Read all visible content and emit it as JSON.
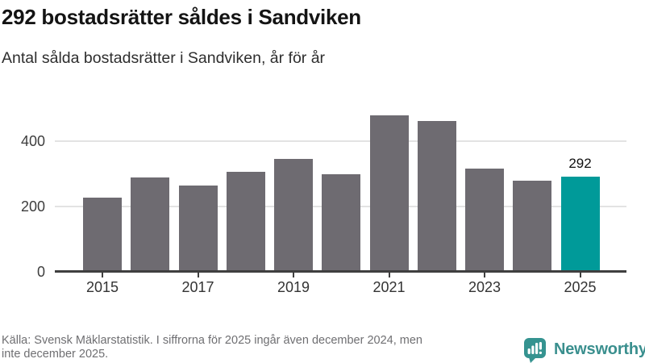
{
  "chart_data": {
    "type": "bar",
    "title": "292 bostadsrätter såldes i Sandviken",
    "subtitle": "Antal sålda bostadsrätter i Sandviken, år för år",
    "categories": [
      "2015",
      "2016",
      "2017",
      "2018",
      "2019",
      "2020",
      "2021",
      "2022",
      "2023",
      "2024",
      "2025"
    ],
    "values": [
      228,
      290,
      265,
      305,
      346,
      300,
      480,
      462,
      317,
      278,
      292
    ],
    "highlight_index": 10,
    "highlight_label": "292",
    "x_tick_labels": [
      "2015",
      "2017",
      "2019",
      "2021",
      "2023",
      "2025"
    ],
    "y_ticks": [
      0,
      200,
      400
    ],
    "ylim": [
      0,
      500
    ],
    "grid": "horizontal",
    "legend": "none",
    "colors": {
      "bar": "#6e6b71",
      "highlight": "#009a99",
      "gridline": "#e3e3e3",
      "axis": "#3f3f3f",
      "value_label": "#111111"
    }
  },
  "footer": {
    "source_line1": "Källa: Svensk Mäklarstatistik. I siffrorna för 2025 ingår även december 2024, men",
    "source_line2": "inte december 2025.",
    "logo_text": "Newsworthy",
    "logo_text_color": "#3a8f8e",
    "logo_mark_color": "#359390"
  }
}
